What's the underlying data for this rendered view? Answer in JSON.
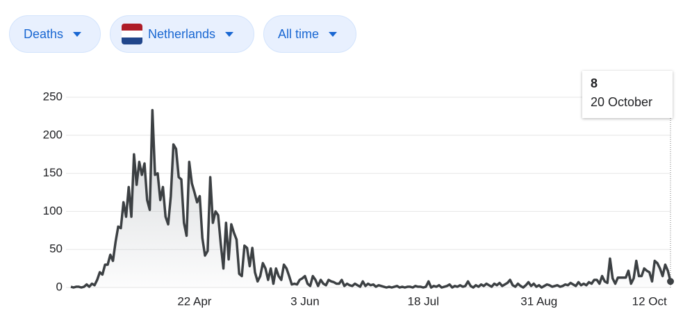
{
  "controls": [
    "Deaths",
    "Netherlands",
    "All time"
  ],
  "chart_data": {
    "type": "line",
    "color": "#3c4043",
    "grid": true,
    "ylim": [
      0,
      250
    ],
    "yticks": [
      0,
      50,
      100,
      150,
      200,
      250
    ],
    "xticks": [
      {
        "value": "22 April",
        "label": "22 Apr"
      },
      {
        "value": "3 June",
        "label": "3 Jun"
      },
      {
        "value": "18 July",
        "label": "18 Jul"
      },
      {
        "value": "31 August",
        "label": "31 Aug"
      },
      {
        "value": "12 October",
        "label": "12 Oct"
      }
    ],
    "categories": [
      "6 March",
      "7 March",
      "8 March",
      "9 March",
      "10 March",
      "11 March",
      "12 March",
      "13 March",
      "14 March",
      "15 March",
      "16 March",
      "17 March",
      "18 March",
      "19 March",
      "20 March",
      "21 March",
      "22 March",
      "23 March",
      "24 March",
      "25 March",
      "26 March",
      "27 March",
      "28 March",
      "29 March",
      "30 March",
      "31 March",
      "1 April",
      "2 April",
      "3 April",
      "4 April",
      "5 April",
      "6 April",
      "7 April",
      "8 April",
      "9 April",
      "10 April",
      "11 April",
      "12 April",
      "13 April",
      "14 April",
      "15 April",
      "16 April",
      "17 April",
      "18 April",
      "19 April",
      "20 April",
      "21 April",
      "22 April",
      "23 April",
      "24 April",
      "25 April",
      "26 April",
      "27 April",
      "28 April",
      "29 April",
      "30 April",
      "1 May",
      "2 May",
      "3 May",
      "4 May",
      "5 May",
      "6 May",
      "7 May",
      "8 May",
      "9 May",
      "10 May",
      "11 May",
      "12 May",
      "13 May",
      "14 May",
      "15 May",
      "16 May",
      "17 May",
      "18 May",
      "19 May",
      "20 May",
      "21 May",
      "22 May",
      "23 May",
      "24 May",
      "25 May",
      "26 May",
      "27 May",
      "28 May",
      "29 May",
      "30 May",
      "31 May",
      "1 June",
      "2 June",
      "3 June",
      "4 June",
      "5 June",
      "6 June",
      "7 June",
      "8 June",
      "9 June",
      "10 June",
      "11 June",
      "12 June",
      "13 June",
      "14 June",
      "15 June",
      "16 June",
      "17 June",
      "18 June",
      "19 June",
      "20 June",
      "21 June",
      "22 June",
      "23 June",
      "24 June",
      "25 June",
      "26 June",
      "27 June",
      "28 June",
      "29 June",
      "30 June",
      "1 July",
      "2 July",
      "3 July",
      "4 July",
      "5 July",
      "6 July",
      "7 July",
      "8 July",
      "9 July",
      "10 July",
      "11 July",
      "12 July",
      "13 July",
      "14 July",
      "15 July",
      "16 July",
      "17 July",
      "18 July",
      "19 July",
      "20 July",
      "21 July",
      "22 July",
      "23 July",
      "24 July",
      "25 July",
      "26 July",
      "27 July",
      "28 July",
      "29 July",
      "30 July",
      "31 July",
      "1 August",
      "2 August",
      "3 August",
      "4 August",
      "5 August",
      "6 August",
      "7 August",
      "8 August",
      "9 August",
      "10 August",
      "11 August",
      "12 August",
      "13 August",
      "14 August",
      "15 August",
      "16 August",
      "17 August",
      "18 August",
      "19 August",
      "20 August",
      "21 August",
      "22 August",
      "23 August",
      "24 August",
      "25 August",
      "26 August",
      "27 August",
      "28 August",
      "29 August",
      "30 August",
      "31 August",
      "1 September",
      "2 September",
      "3 September",
      "4 September",
      "5 September",
      "6 September",
      "7 September",
      "8 September",
      "9 September",
      "10 September",
      "11 September",
      "12 September",
      "13 September",
      "14 September",
      "15 September",
      "16 September",
      "17 September",
      "18 September",
      "19 September",
      "20 September",
      "21 September",
      "22 September",
      "23 September",
      "24 September",
      "25 September",
      "26 September",
      "27 September",
      "28 September",
      "29 September",
      "30 September",
      "1 October",
      "2 October",
      "3 October",
      "4 October",
      "5 October",
      "6 October",
      "7 October",
      "8 October",
      "9 October",
      "10 October",
      "11 October",
      "12 October",
      "13 October",
      "14 October",
      "15 October",
      "16 October",
      "17 October",
      "18 October",
      "19 October",
      "20 October"
    ],
    "values": [
      1,
      0,
      1,
      1,
      0,
      1,
      4,
      1,
      5,
      3,
      10,
      20,
      17,
      30,
      30,
      43,
      35,
      60,
      80,
      78,
      112,
      93,
      132,
      93,
      175,
      135,
      165,
      148,
      163,
      115,
      102,
      233,
      148,
      150,
      115,
      132,
      93,
      83,
      120,
      188,
      182,
      145,
      142,
      85,
      68,
      165,
      137,
      125,
      112,
      120,
      65,
      42,
      48,
      145,
      85,
      100,
      95,
      57,
      25,
      85,
      37,
      83,
      72,
      63,
      18,
      15,
      55,
      52,
      28,
      52,
      20,
      8,
      15,
      32,
      25,
      10,
      25,
      5,
      25,
      15,
      10,
      30,
      25,
      15,
      4,
      5,
      4,
      10,
      12,
      15,
      5,
      2,
      15,
      10,
      2,
      10,
      5,
      3,
      10,
      8,
      7,
      5,
      5,
      10,
      2,
      5,
      3,
      2,
      5,
      3,
      1,
      8,
      2,
      5,
      3,
      4,
      1,
      3,
      2,
      1,
      0,
      1,
      0,
      1,
      2,
      0,
      1,
      0,
      1,
      1,
      0,
      2,
      1,
      1,
      0,
      1,
      8,
      0,
      2,
      1,
      3,
      0,
      1,
      2,
      4,
      0,
      2,
      1,
      3,
      1,
      2,
      8,
      2,
      0,
      3,
      1,
      4,
      2,
      5,
      3,
      1,
      5,
      3,
      6,
      2,
      4,
      6,
      10,
      3,
      1,
      5,
      2,
      0,
      3,
      7,
      2,
      5,
      1,
      3,
      0,
      2,
      4,
      3,
      1,
      2,
      3,
      1,
      2,
      4,
      3,
      6,
      4,
      2,
      7,
      3,
      5,
      3,
      7,
      5,
      10,
      10,
      5,
      15,
      8,
      6,
      38,
      12,
      5,
      13,
      13,
      13,
      13,
      22,
      5,
      12,
      35,
      15,
      15,
      25,
      22,
      20,
      8,
      35,
      32,
      25,
      15,
      30,
      22,
      8
    ]
  }
}
